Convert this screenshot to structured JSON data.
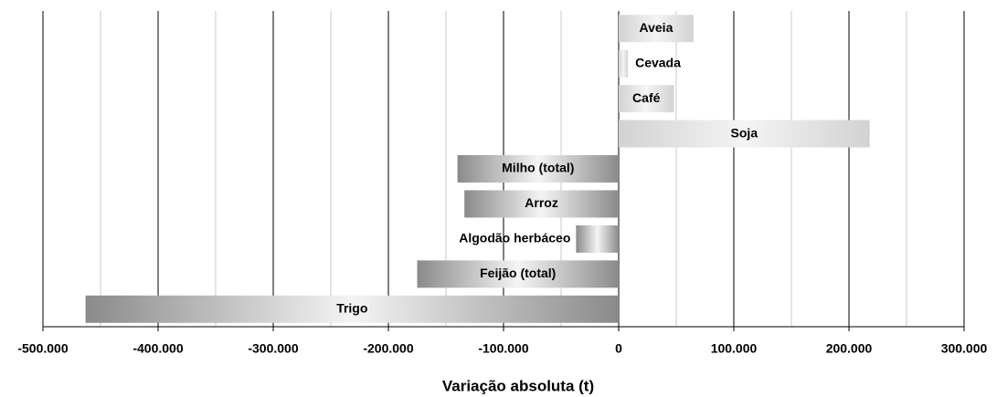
{
  "chart_data": {
    "type": "barh",
    "x_label": "Variação absoluta (t)",
    "categories": [
      "Aveia",
      "Cevada",
      "Café",
      "Soja",
      "Milho (total)",
      "Arroz",
      "Algodão herbáceo",
      "Feijão (total)",
      "Trigo"
    ],
    "values": [
      65000,
      8000,
      48000,
      218000,
      -140000,
      -134000,
      -37000,
      -175000,
      -463000
    ],
    "color_positive": "#d2d2d2",
    "color_negative": "#8a8a8a",
    "xlim": [
      -500000,
      300000
    ],
    "xticks": [
      {
        "value": -500000,
        "label": "-500.000"
      },
      {
        "value": -400000,
        "label": "-400.000"
      },
      {
        "value": -300000,
        "label": "-300.000"
      },
      {
        "value": -200000,
        "label": "-200.000"
      },
      {
        "value": -100000,
        "label": "-100.000"
      },
      0,
      {
        "value": 100000,
        "label": "100.000"
      },
      {
        "value": 200000,
        "label": "200.000"
      },
      {
        "value": 300000,
        "label": "300.000"
      }
    ],
    "minor_xticks": [
      -450000,
      -350000,
      -250000,
      -150000,
      -50000,
      50000,
      150000,
      250000
    ],
    "grid": true
  }
}
